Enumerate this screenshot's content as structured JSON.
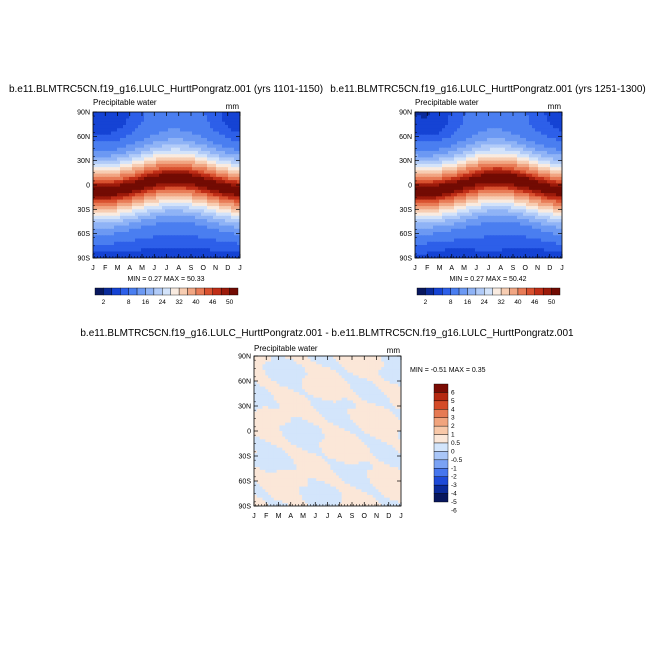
{
  "chart_data": [
    {
      "type": "heatmap",
      "title": "b.e11.BLMTRC5CN.f19_g16.LULC_HurttPongratz.001 (yrs 1101-1150)",
      "left_label": "Precipitable water",
      "units": "mm",
      "x_ticks": [
        "J",
        "F",
        "M",
        "A",
        "M",
        "J",
        "J",
        "A",
        "S",
        "O",
        "N",
        "D",
        "J"
      ],
      "y_ticks": [
        "90N",
        "60N",
        "30N",
        "0",
        "30S",
        "60S",
        "90S"
      ],
      "stats": "MIN =   0.27 MAX =  50.33",
      "min": 0.27,
      "max": 50.33,
      "colorbar_labels": [
        "2",
        "8",
        "16",
        "24",
        "32",
        "40",
        "46",
        "50"
      ],
      "colorbar_levels": [
        2,
        4,
        6,
        8,
        12,
        16,
        20,
        24,
        28,
        32,
        36,
        40,
        44,
        46,
        48,
        50
      ]
    },
    {
      "type": "heatmap",
      "title": "b.e11.BLMTRC5CN.f19_g16.LULC_HurttPongratz.001 (yrs 1251-1300)",
      "left_label": "Precipitable water",
      "units": "mm",
      "x_ticks": [
        "J",
        "F",
        "M",
        "A",
        "M",
        "J",
        "J",
        "A",
        "S",
        "O",
        "N",
        "D",
        "J"
      ],
      "y_ticks": [
        "90N",
        "60N",
        "30N",
        "0",
        "30S",
        "60S",
        "90S"
      ],
      "stats": "MIN =   0.27 MAX =  50.42",
      "min": 0.27,
      "max": 50.42,
      "colorbar_labels": [
        "2",
        "8",
        "16",
        "24",
        "32",
        "40",
        "46",
        "50"
      ],
      "colorbar_levels": [
        2,
        4,
        6,
        8,
        12,
        16,
        20,
        24,
        28,
        32,
        36,
        40,
        44,
        46,
        48,
        50
      ]
    },
    {
      "type": "heatmap",
      "title": "b.e11.BLMTRC5CN.f19_g16.LULC_HurttPongratz.001 - b.e11.BLMTRC5CN.f19_g16.LULC_HurttPongratz.001",
      "left_label": "Precipitable water",
      "units": "mm",
      "x_ticks": [
        "J",
        "F",
        "M",
        "A",
        "M",
        "J",
        "J",
        "A",
        "S",
        "O",
        "N",
        "D",
        "J"
      ],
      "y_ticks": [
        "90N",
        "60N",
        "30N",
        "0",
        "30S",
        "60S",
        "90S"
      ],
      "stats": "MIN =  -0.51 MAX =   0.35",
      "min": -0.51,
      "max": 0.35,
      "colorbar_labels": [
        "6",
        "5",
        "4",
        "3",
        "2",
        "1",
        "0.5",
        "0",
        "-0.5",
        "-1",
        "-2",
        "-3",
        "-4",
        "-5",
        "-6"
      ]
    }
  ],
  "colors": {
    "seq": [
      "#08175e",
      "#0a2a9a",
      "#1543d4",
      "#2d5fe9",
      "#4a7ef0",
      "#6c99f3",
      "#8fb3f6",
      "#b1cbf8",
      "#d3e3fa",
      "#f9ebe0",
      "#f7cdb2",
      "#f1a683",
      "#e87c57",
      "#d9512f",
      "#c02e17",
      "#9c1a0a",
      "#720b03"
    ],
    "div": [
      "#08175e",
      "#0a2a9a",
      "#1d4ad8",
      "#4676ee",
      "#7aa2f4",
      "#a9c6f8",
      "#d3e5fb",
      "#fbe7d8",
      "#f8c8a8",
      "#f1a47d",
      "#e67a53",
      "#d44b28",
      "#b52810",
      "#7a0b03"
    ]
  }
}
